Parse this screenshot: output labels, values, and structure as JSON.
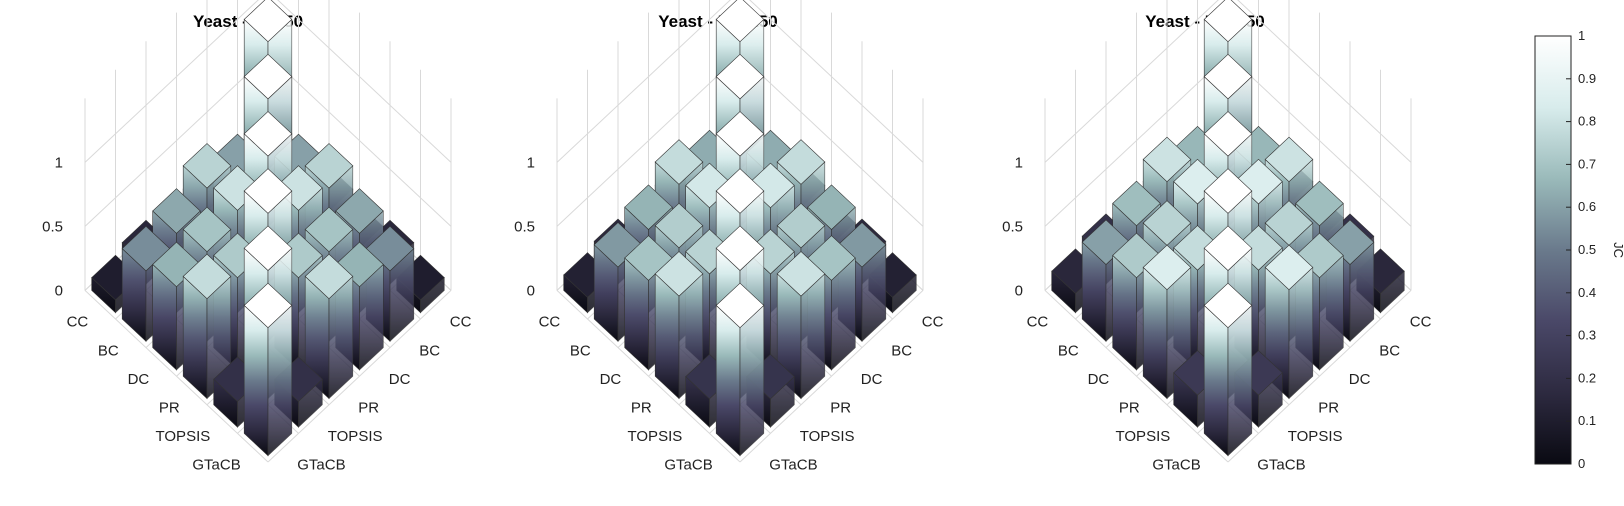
{
  "chart_data": [
    {
      "type": "bar3d",
      "title": "Yeast - K = 50",
      "row_labels": [
        "GTaCB",
        "TOPSIS",
        "PR",
        "DC",
        "BC",
        "CC"
      ],
      "col_labels": [
        "GTaCB",
        "TOPSIS",
        "PR",
        "DC",
        "BC",
        "CC"
      ],
      "z_ticks": [
        "0",
        "0.5",
        "1"
      ],
      "zlim": [
        0,
        1
      ],
      "values": [
        [
          1.0,
          0.2,
          0.78,
          0.65,
          0.55,
          0.1
        ],
        [
          0.2,
          1.0,
          0.72,
          0.7,
          0.62,
          0.15
        ],
        [
          0.78,
          0.72,
          1.0,
          0.8,
          0.75,
          0.05
        ],
        [
          0.65,
          0.7,
          0.8,
          1.0,
          0.6,
          0.12
        ],
        [
          0.55,
          0.62,
          0.75,
          0.6,
          1.0,
          0.08
        ],
        [
          0.1,
          0.15,
          0.05,
          0.12,
          0.08,
          1.0
        ]
      ]
    },
    {
      "type": "bar3d",
      "title": "Yeast - K = 150",
      "row_labels": [
        "GTaCB",
        "TOPSIS",
        "PR",
        "DC",
        "BC",
        "CC"
      ],
      "col_labels": [
        "GTaCB",
        "TOPSIS",
        "PR",
        "DC",
        "BC",
        "CC"
      ],
      "z_ticks": [
        "0",
        "0.5",
        "1"
      ],
      "zlim": [
        0,
        1
      ],
      "values": [
        [
          1.0,
          0.22,
          0.8,
          0.7,
          0.58,
          0.12
        ],
        [
          0.22,
          1.0,
          0.75,
          0.73,
          0.65,
          0.16
        ],
        [
          0.8,
          0.75,
          1.0,
          0.82,
          0.78,
          0.08
        ],
        [
          0.7,
          0.73,
          0.82,
          1.0,
          0.63,
          0.15
        ],
        [
          0.58,
          0.65,
          0.78,
          0.63,
          1.0,
          0.1
        ],
        [
          0.12,
          0.16,
          0.08,
          0.15,
          0.1,
          1.0
        ]
      ]
    },
    {
      "type": "bar3d",
      "title": "Yeast - K = 250",
      "row_labels": [
        "GTaCB",
        "TOPSIS",
        "PR",
        "DC",
        "BC",
        "CC"
      ],
      "col_labels": [
        "GTaCB",
        "TOPSIS",
        "PR",
        "DC",
        "BC",
        "CC"
      ],
      "z_ticks": [
        "0",
        "0.5",
        "1"
      ],
      "zlim": [
        0,
        1
      ],
      "values": [
        [
          1.0,
          0.25,
          0.85,
          0.72,
          0.6,
          0.15
        ],
        [
          0.25,
          1.0,
          0.78,
          0.75,
          0.68,
          0.2
        ],
        [
          0.85,
          0.78,
          1.0,
          0.85,
          0.8,
          0.12
        ],
        [
          0.72,
          0.75,
          0.85,
          1.0,
          0.66,
          0.18
        ],
        [
          0.6,
          0.68,
          0.8,
          0.66,
          1.0,
          0.13
        ],
        [
          0.15,
          0.2,
          0.12,
          0.18,
          0.13,
          1.0
        ]
      ]
    }
  ],
  "colorbar": {
    "label": "JC",
    "ticks": [
      "0",
      "0.1",
      "0.2",
      "0.3",
      "0.4",
      "0.5",
      "0.6",
      "0.7",
      "0.8",
      "0.9",
      "1"
    ],
    "colormap": [
      "#0a0a12",
      "#2d2a40",
      "#4a4868",
      "#6a7a8c",
      "#9ababa",
      "#d8ecec",
      "#ffffff"
    ]
  }
}
